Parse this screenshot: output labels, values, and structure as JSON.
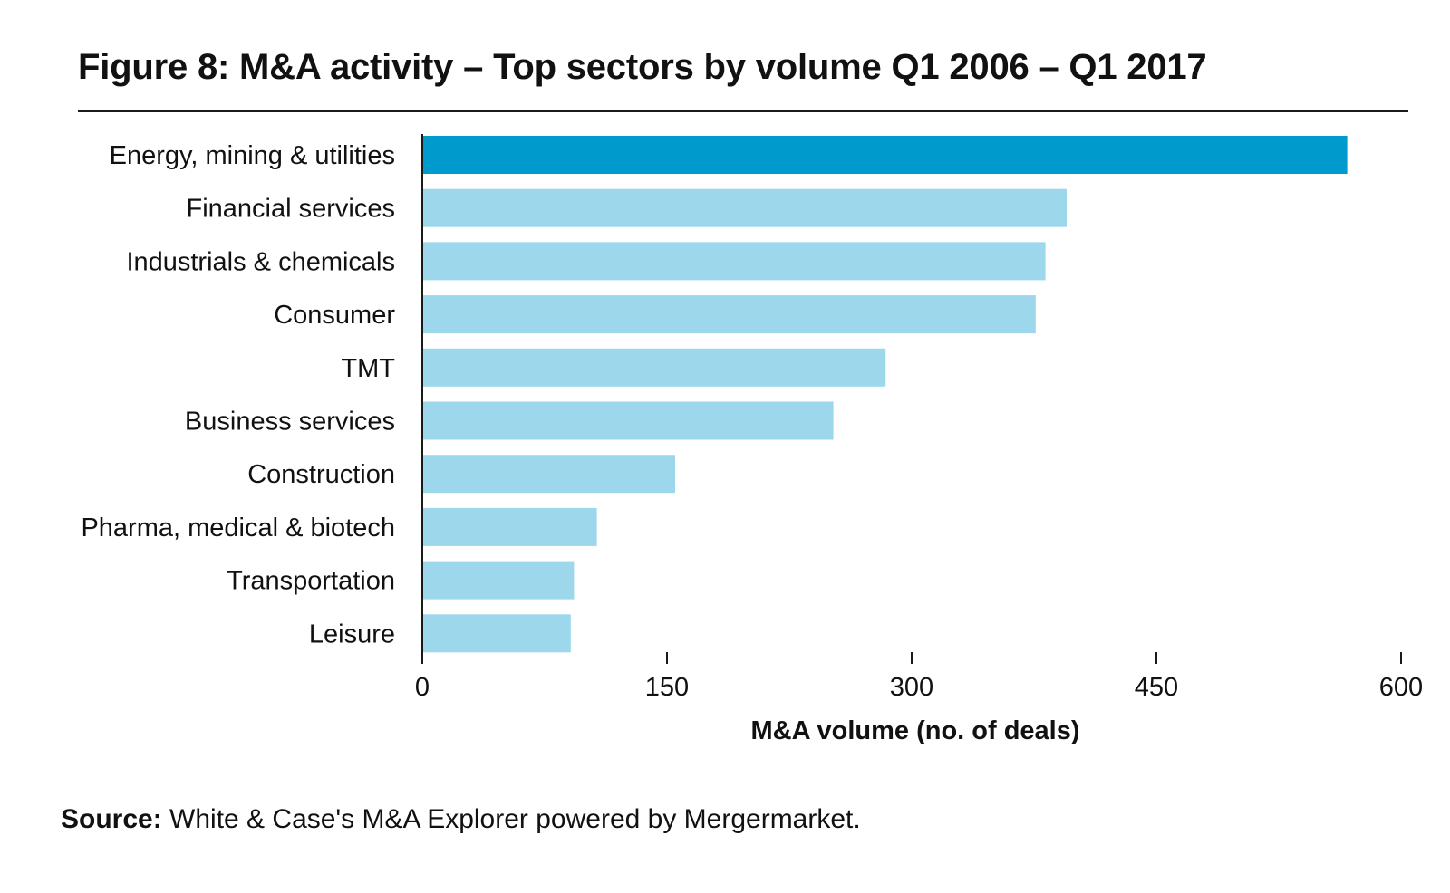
{
  "title": "Figure 8: M&A activity – Top sectors by volume Q1 2006 – Q1 2017",
  "source": {
    "label": "Source:",
    "text": " White & Case's M&A Explorer powered by Mergermarket."
  },
  "colors": {
    "highlight": "#009acd",
    "bar": "#9dd7eb",
    "axis": "#1a1a1a",
    "text": "#111111"
  },
  "chart_data": {
    "type": "bar",
    "orientation": "horizontal",
    "categories": [
      "Energy, mining & utilities",
      "Financial services",
      "Industrials & chemicals",
      "Consumer",
      "TMT",
      "Business services",
      "Construction",
      "Pharma, medical & biotech",
      "Transportation",
      "Leisure"
    ],
    "values": [
      567,
      395,
      382,
      376,
      284,
      252,
      155,
      107,
      93,
      91
    ],
    "highlighted_index": 0,
    "xlabel": "M&A volume (no. of deals)",
    "ylabel": "",
    "xlim": [
      0,
      600
    ],
    "xticks": [
      "0",
      "150",
      "300",
      "450",
      "600"
    ],
    "grid": false
  }
}
